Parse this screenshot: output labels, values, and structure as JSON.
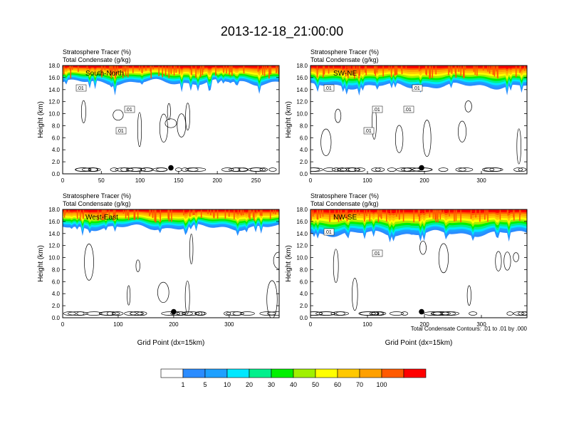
{
  "figure": {
    "title": "2013-12-18_21:00:00",
    "footnote": "Total Condensate Contours: .01 to .01 by .000"
  },
  "colorbar": {
    "colors": [
      "#ffffff",
      "#2b8cff",
      "#1ea0ff",
      "#00e8ff",
      "#00f08c",
      "#00f000",
      "#a0f000",
      "#ffff00",
      "#ffc800",
      "#ffa000",
      "#ff5a00",
      "#ff0000"
    ],
    "labels": [
      "1",
      "5",
      "10",
      "20",
      "30",
      "40",
      "50",
      "60",
      "70",
      "100"
    ]
  },
  "chart_data": [
    {
      "type": "heatmap",
      "title_line1": "Stratosphere Tracer   (%)",
      "title_line2": "Total Condensate   (g/kg)",
      "panel_label": "South-North",
      "ylabel": "Height (km)",
      "xlabel": "",
      "xlim": [
        0,
        280
      ],
      "ylim": [
        0,
        18
      ],
      "xticks": [
        "0",
        "50",
        "100",
        "150",
        "200",
        "250"
      ],
      "xtick_values": [
        0,
        50,
        100,
        150,
        200,
        250
      ],
      "yticks": [
        "0.0",
        "2.0",
        "4.0",
        "6.0",
        "8.0",
        "10.0",
        "12.0",
        "14.0",
        "16.0",
        "18.0"
      ],
      "contour_labels": [
        ".01",
        ".01",
        ".01"
      ],
      "marker": {
        "x": 140,
        "y": 1.0
      },
      "tracer_base_km": 15.2,
      "grid": false
    },
    {
      "type": "heatmap",
      "title_line1": "Stratosphere Tracer   (%)",
      "title_line2": "Total Condensate   (g/kg)",
      "panel_label": "SW-NE",
      "ylabel": "Height (km)",
      "xlabel": "",
      "xlim": [
        0,
        380
      ],
      "ylim": [
        0,
        18
      ],
      "xticks": [
        "0",
        "100",
        "200",
        "300"
      ],
      "xtick_values": [
        0,
        100,
        200,
        300
      ],
      "yticks": [
        "0.0",
        "2.0",
        "4.0",
        "6.0",
        "8.0",
        "10.0",
        "12.0",
        "14.0",
        "16.0",
        "18.0"
      ],
      "contour_labels": [
        ".01",
        ".01",
        ".01",
        ".01",
        ".01"
      ],
      "marker": {
        "x": 195,
        "y": 1.0
      },
      "tracer_base_km": 14.6,
      "grid": false
    },
    {
      "type": "heatmap",
      "title_line1": "Stratosphere Tracer   (%)",
      "title_line2": "Total Condensate   (g/kg)",
      "panel_label": "West-East",
      "ylabel": "Height (km)",
      "xlabel": "Grid Point (dx=15km)",
      "xlim": [
        0,
        390
      ],
      "ylim": [
        0,
        18
      ],
      "xticks": [
        "0",
        "100",
        "200",
        "300"
      ],
      "xtick_values": [
        0,
        100,
        200,
        300
      ],
      "yticks": [
        "0.0",
        "2.0",
        "4.0",
        "6.0",
        "8.0",
        "10.0",
        "12.0",
        "14.0",
        "16.0",
        "18.0"
      ],
      "contour_labels": [],
      "marker": {
        "x": 200,
        "y": 1.0
      },
      "tracer_base_km": 15.0,
      "grid": false
    },
    {
      "type": "heatmap",
      "title_line1": "Stratosphere Tracer   (%)",
      "title_line2": "Total Condensate   (g/kg)",
      "panel_label": "NW-SE",
      "ylabel": "Height (km)",
      "xlabel": "Grid Point (dx=15km)",
      "xlim": [
        0,
        380
      ],
      "ylim": [
        0,
        18
      ],
      "xticks": [
        "0",
        "100",
        "200",
        "300"
      ],
      "xtick_values": [
        0,
        100,
        200,
        300
      ],
      "yticks": [
        "0.0",
        "2.0",
        "4.0",
        "6.0",
        "8.0",
        "10.0",
        "12.0",
        "14.0",
        "16.0",
        "18.0"
      ],
      "contour_labels": [
        ".01",
        ".01"
      ],
      "marker": {
        "x": 195,
        "y": 1.0
      },
      "tracer_base_km": 14.0,
      "grid": false
    }
  ]
}
